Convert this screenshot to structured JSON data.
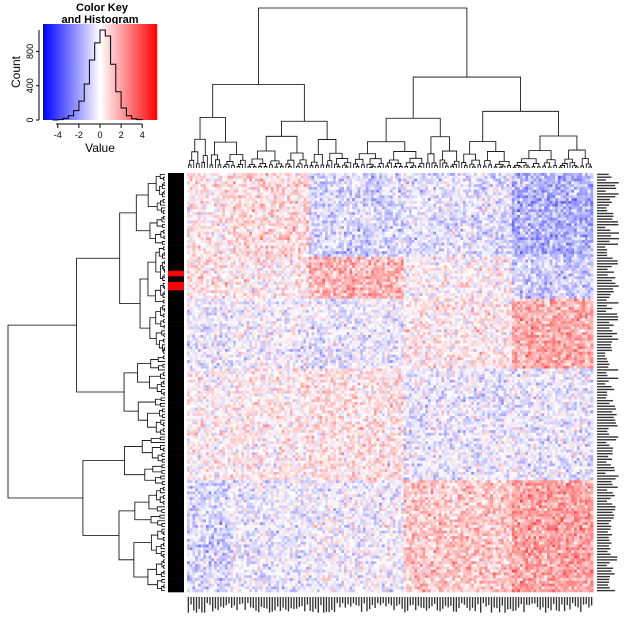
{
  "colors": {
    "low": "#0000ff",
    "mid": "#ffffff",
    "high": "#ff0000",
    "sidebar_default": "#000000",
    "sidebar_highlight": "#ff0000"
  },
  "color_key": {
    "title_line1": "Color Key",
    "title_line2": "and Histogram",
    "xlabel": "Value",
    "ylabel": "Count",
    "x_ticks": [
      "-4",
      "-2",
      "0",
      "2",
      "4"
    ],
    "y_ticks": [
      "0",
      "400",
      "800"
    ]
  },
  "chart_data": {
    "type": "heatmap",
    "title": "",
    "n_rows": 150,
    "n_cols": 150,
    "value_range": [
      -5.4,
      5.4
    ],
    "colorscale": [
      "blue",
      "white",
      "red"
    ],
    "row_dendrogram": true,
    "col_dendrogram": true,
    "row_side_colors": {
      "highlighted_rows": [
        35,
        36,
        37,
        38,
        39,
        40,
        41,
        42
      ]
    },
    "histogram": {
      "x": [
        -4.5,
        -4,
        -3.5,
        -3,
        -2.5,
        -2,
        -1.5,
        -1,
        -0.5,
        0,
        0.5,
        1,
        1.5,
        2,
        2.5,
        3,
        3.5,
        4
      ],
      "counts": [
        0,
        5,
        20,
        50,
        110,
        220,
        420,
        700,
        900,
        1050,
        980,
        650,
        330,
        140,
        50,
        15,
        5,
        0
      ],
      "xlim": [
        -5.4,
        5.4
      ],
      "ylim": [
        0,
        1050
      ]
    }
  }
}
